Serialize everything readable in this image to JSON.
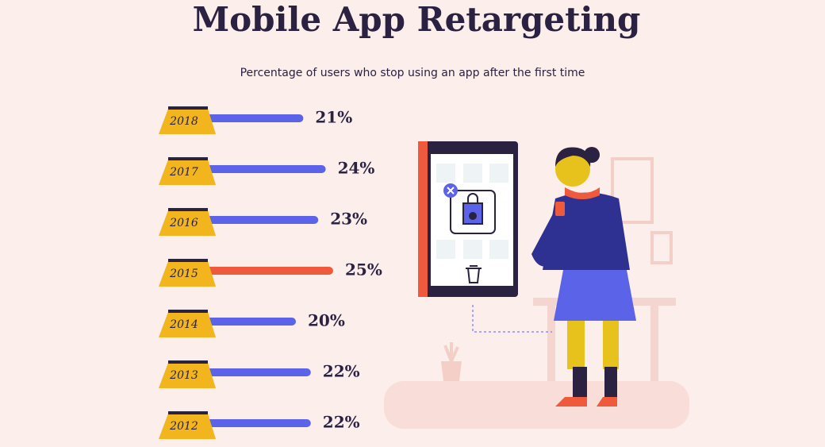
{
  "chart_data": {
    "type": "bar",
    "orientation": "horizontal",
    "title": "Mobile App Retargeting",
    "subtitle": "Percentage of users who stop using an app after the first time",
    "categories": [
      "2018",
      "2017",
      "2016",
      "2015",
      "2014",
      "2013",
      "2012"
    ],
    "values": [
      21,
      24,
      23,
      25,
      20,
      22,
      22
    ],
    "value_labels": [
      "21%",
      "24%",
      "23%",
      "25%",
      "20%",
      "22%",
      "22%"
    ],
    "colors": [
      "#5b63e8",
      "#5b63e8",
      "#5b63e8",
      "#f05a3c",
      "#5b63e8",
      "#5b63e8",
      "#5b63e8"
    ]
  }
}
